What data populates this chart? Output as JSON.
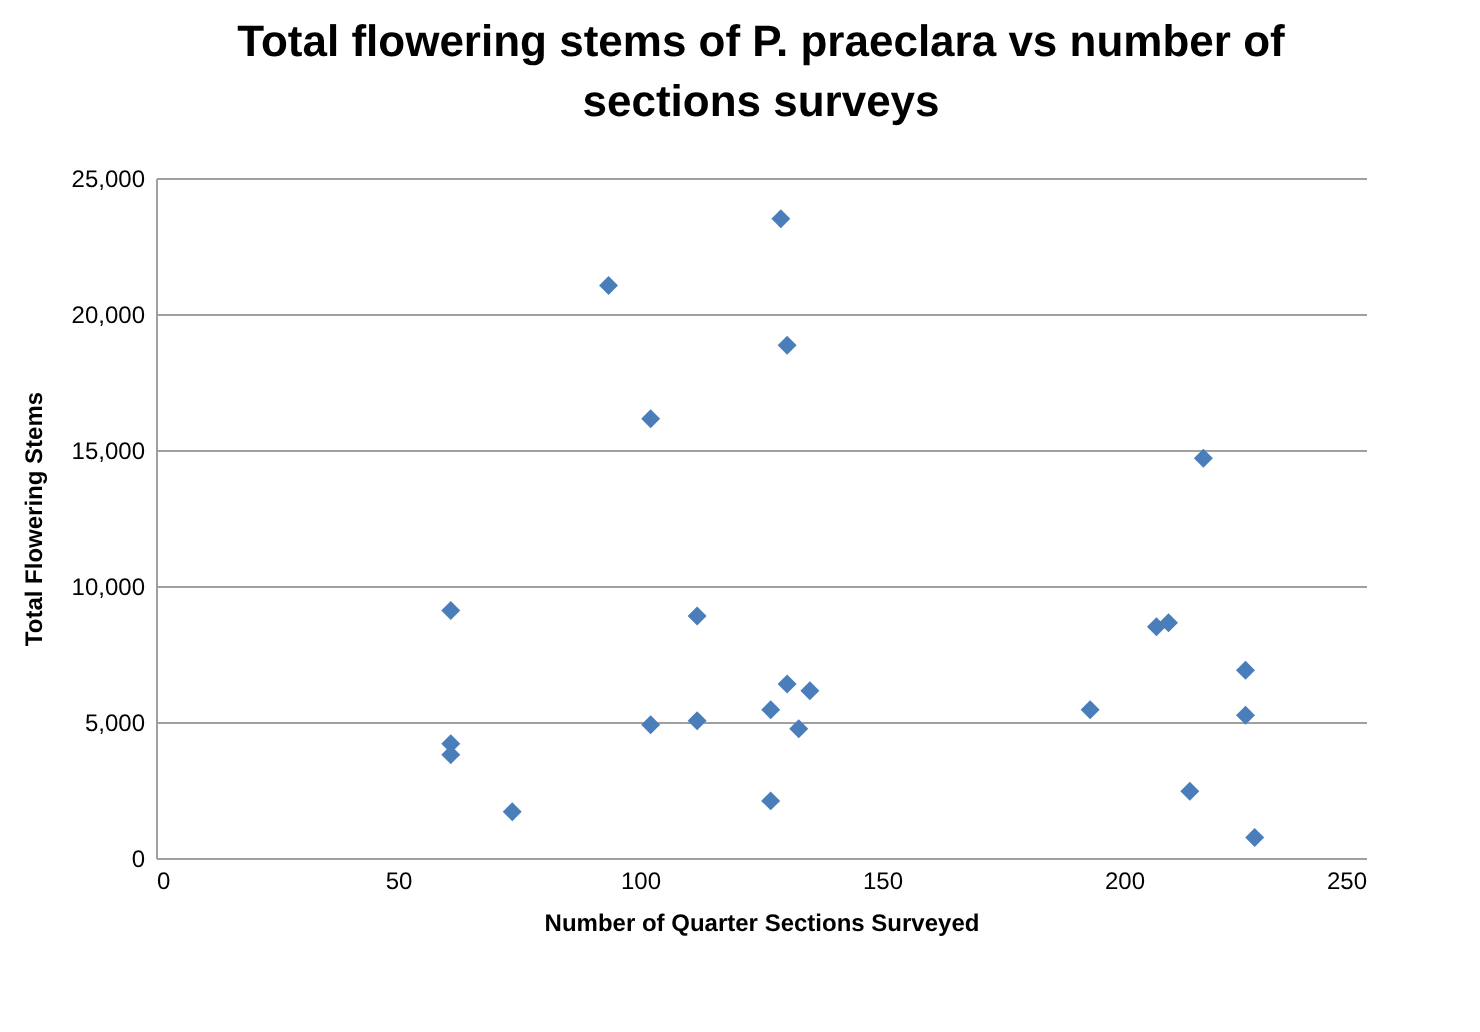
{
  "chart_data": {
    "type": "scatter",
    "title": "Total flowering stems of P. praeclara vs number of sections surveys",
    "xlabel": "Number of Quarter Sections Surveyed",
    "ylabel": "Total Flowering Stems",
    "x": [
      129.1,
      93.5,
      130.4,
      102.2,
      60.9,
      111.8,
      130.4,
      127,
      102.2,
      111.8,
      60.9,
      60.9,
      73.6,
      127,
      216.4,
      206.7,
      209.2,
      225.1,
      135.1,
      193,
      225.1,
      132.8,
      213.6,
      227
    ],
    "series": [
      {
        "color": "#4a7ebb",
        "values": [
          23500,
          21050,
          18850,
          16150,
          9100,
          8900,
          6400,
          5450,
          4900,
          5050,
          4200,
          3800,
          1700,
          2100,
          14700,
          8500,
          8650,
          6900,
          6150,
          5450,
          5250,
          4750,
          2450,
          750
        ]
      }
    ],
    "xlim": [
      0,
      250
    ],
    "xticks": [
      0,
      50,
      100,
      150,
      200,
      250
    ],
    "ylim": [
      0,
      25000
    ],
    "yticks": [
      {
        "value": 0,
        "label": "0"
      },
      {
        "value": 5000,
        "label": "5,000"
      },
      {
        "value": 10000,
        "label": "10,000"
      },
      {
        "value": 15000,
        "label": "15,000"
      },
      {
        "value": 20000,
        "label": "20,000"
      },
      {
        "value": 25000,
        "label": "25,000"
      }
    ],
    "grid": "y",
    "marker": "diamond"
  }
}
